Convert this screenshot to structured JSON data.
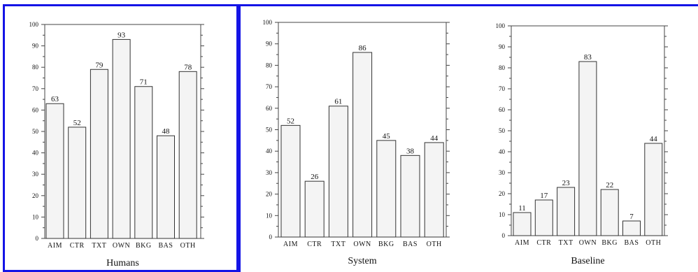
{
  "chart_data": [
    {
      "type": "bar",
      "title": "Humans",
      "categories": [
        "AIM",
        "CTR",
        "TXT",
        "OWN",
        "BKG",
        "BAS",
        "OTH"
      ],
      "values": [
        63,
        52,
        79,
        93,
        71,
        48,
        78
      ],
      "ylim": [
        0,
        100
      ],
      "yticks": [
        0,
        10,
        20,
        30,
        40,
        50,
        60,
        70,
        80,
        90,
        100
      ],
      "grid": false,
      "colors": {
        "bar_fill": "#f4f4f4",
        "bar_stroke": "#333333"
      }
    },
    {
      "type": "bar",
      "title": "System",
      "categories": [
        "AIM",
        "CTR",
        "TXT",
        "OWN",
        "BKG",
        "BAS",
        "OTH"
      ],
      "values": [
        52,
        26,
        61,
        86,
        45,
        38,
        44
      ],
      "ylim": [
        0,
        100
      ],
      "yticks": [
        0,
        10,
        20,
        30,
        40,
        50,
        60,
        70,
        80,
        90,
        100
      ],
      "grid": false,
      "colors": {
        "bar_fill": "#f4f4f4",
        "bar_stroke": "#333333"
      }
    },
    {
      "type": "bar",
      "title": "Baseline",
      "categories": [
        "AIM",
        "CTR",
        "TXT",
        "OWN",
        "BKG",
        "BAS",
        "OTH"
      ],
      "values": [
        11,
        17,
        23,
        83,
        22,
        7,
        44
      ],
      "ylim": [
        0,
        100
      ],
      "yticks": [
        0,
        10,
        20,
        30,
        40,
        50,
        60,
        70,
        80,
        90,
        100
      ],
      "grid": false,
      "colors": {
        "bar_fill": "#f4f4f4",
        "bar_stroke": "#333333"
      }
    }
  ],
  "frame_color": "#1414e6"
}
